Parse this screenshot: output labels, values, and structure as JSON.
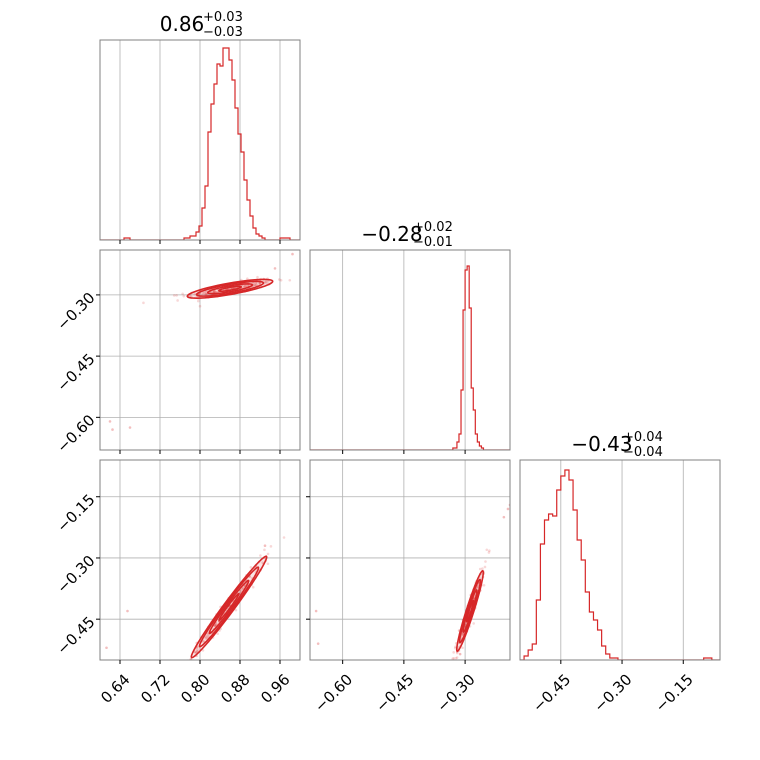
{
  "chart_data": {
    "type": "corner",
    "color": "#d62728",
    "grid": true,
    "params": [
      {
        "name": "",
        "range": [
          0.6,
          1.0
        ],
        "ticks": [
          0.64,
          0.72,
          0.8,
          0.88,
          0.96
        ],
        "tick_labels": [
          "0.64",
          "0.72",
          "0.80",
          "0.88",
          "0.96"
        ],
        "title_value": "0.86",
        "title_plus": "+0.03",
        "title_minus": "−0.03",
        "hist_x": [
          0.6,
          0.612,
          0.624,
          0.636,
          0.648,
          0.66,
          0.672,
          0.684,
          0.696,
          0.708,
          0.72,
          0.732,
          0.744,
          0.756,
          0.768,
          0.78,
          0.792,
          0.798,
          0.804,
          0.81,
          0.816,
          0.822,
          0.828,
          0.834,
          0.84,
          0.846,
          0.852,
          0.858,
          0.864,
          0.87,
          0.876,
          0.882,
          0.888,
          0.894,
          0.9,
          0.906,
          0.912,
          0.918,
          0.924,
          0.93,
          0.94,
          0.96,
          0.98
        ],
        "hist_y": [
          0.0,
          0.0,
          0.0,
          0.0,
          0.01,
          0.0,
          0.0,
          0.0,
          0.0,
          0.0,
          0.0,
          0.0,
          0.0,
          0.0,
          0.01,
          0.02,
          0.04,
          0.07,
          0.16,
          0.27,
          0.54,
          0.68,
          0.78,
          0.88,
          0.87,
          0.96,
          0.96,
          0.9,
          0.8,
          0.66,
          0.53,
          0.44,
          0.3,
          0.2,
          0.12,
          0.06,
          0.03,
          0.02,
          0.01,
          0.0,
          0.0,
          0.01,
          0.0
        ]
      },
      {
        "name": "",
        "range": [
          -0.68,
          -0.19
        ],
        "ticks": [
          -0.6,
          -0.45,
          -0.3
        ],
        "tick_labels": [
          "−0.60",
          "−0.45",
          "−0.30"
        ],
        "title_value": "−0.28",
        "title_plus": "+0.02",
        "title_minus": "−0.01",
        "hist_x": [
          -0.68,
          -0.66,
          -0.64,
          -0.62,
          -0.6,
          -0.58,
          -0.56,
          -0.54,
          -0.52,
          -0.5,
          -0.48,
          -0.46,
          -0.44,
          -0.42,
          -0.4,
          -0.38,
          -0.36,
          -0.34,
          -0.33,
          -0.32,
          -0.315,
          -0.31,
          -0.305,
          -0.3,
          -0.295,
          -0.29,
          -0.285,
          -0.28,
          -0.275,
          -0.27,
          -0.265,
          -0.26,
          -0.255,
          -0.25,
          -0.24,
          -0.22,
          -0.2
        ],
        "hist_y": [
          0.0,
          0.0,
          0.0,
          0.0,
          0.0,
          0.0,
          0.0,
          0.0,
          0.0,
          0.0,
          0.0,
          0.0,
          0.0,
          0.0,
          0.0,
          0.0,
          0.0,
          0.0,
          0.01,
          0.04,
          0.08,
          0.3,
          0.7,
          0.9,
          0.92,
          0.71,
          0.31,
          0.2,
          0.08,
          0.04,
          0.02,
          0.01,
          0.0,
          0.0,
          0.0,
          0.0,
          0.0
        ]
      },
      {
        "name": "",
        "range": [
          -0.55,
          -0.06
        ],
        "ticks": [
          -0.45,
          -0.3,
          -0.15
        ],
        "tick_labels": [
          "−0.45",
          "−0.30",
          "−0.15"
        ],
        "title_value": "−0.43",
        "title_plus": "+0.04",
        "title_minus": "−0.04",
        "hist_x": [
          -0.55,
          -0.54,
          -0.53,
          -0.52,
          -0.51,
          -0.5,
          -0.49,
          -0.48,
          -0.47,
          -0.46,
          -0.45,
          -0.44,
          -0.43,
          -0.42,
          -0.41,
          -0.4,
          -0.39,
          -0.38,
          -0.37,
          -0.36,
          -0.35,
          -0.34,
          -0.33,
          -0.32,
          -0.31,
          -0.3,
          -0.29,
          -0.28,
          -0.26,
          -0.24,
          -0.22,
          -0.2,
          -0.18,
          -0.16,
          -0.14,
          -0.12,
          -0.1,
          -0.08
        ],
        "hist_y": [
          0.0,
          0.02,
          0.05,
          0.08,
          0.3,
          0.58,
          0.7,
          0.73,
          0.72,
          0.85,
          0.92,
          0.95,
          0.9,
          0.75,
          0.6,
          0.5,
          0.34,
          0.24,
          0.2,
          0.15,
          0.07,
          0.03,
          0.01,
          0.01,
          0.0,
          0.0,
          0.0,
          0.0,
          0.0,
          0.0,
          0.0,
          0.0,
          0.0,
          0.0,
          0.0,
          0.0,
          0.01,
          0.0
        ]
      }
    ],
    "pairs": [
      {
        "row": 1,
        "col": 0,
        "center": [
          0.86,
          -0.285
        ],
        "axis_dirs": [
          [
            0.977,
            0.213
          ],
          [
            -0.213,
            0.977
          ]
        ],
        "sigma": [
          0.038,
          0.006
        ],
        "levels": [
          0.6,
          1.2,
          1.8,
          2.3
        ],
        "outliers": [
          [
            0.625,
            -0.63
          ],
          [
            0.66,
            -0.625
          ],
          [
            0.985,
            -0.2
          ],
          [
            0.62,
            -0.61
          ],
          [
            0.95,
            -0.235
          ]
        ]
      },
      {
        "row": 2,
        "col": 0,
        "center": [
          0.858,
          -0.42
        ],
        "axis_dirs": [
          [
            0.516,
            0.857
          ],
          [
            -0.857,
            0.516
          ]
        ],
        "sigma": [
          0.063,
          0.005
        ],
        "levels": [
          0.6,
          1.2,
          1.8,
          2.3
        ],
        "outliers": [
          [
            0.613,
            -0.52
          ],
          [
            0.655,
            -0.43
          ],
          [
            0.93,
            -0.27
          ],
          [
            0.79,
            -0.53
          ]
        ]
      },
      {
        "row": 2,
        "col": 1,
        "center": [
          -0.288,
          -0.43
        ],
        "axis_dirs": [
          [
            0.302,
            0.953
          ],
          [
            -0.953,
            0.302
          ]
        ],
        "sigma": [
          0.045,
          0.004
        ],
        "levels": [
          0.6,
          1.2,
          1.8,
          2.3
        ],
        "outliers": [
          [
            -0.665,
            -0.43
          ],
          [
            -0.66,
            -0.51
          ],
          [
            -0.195,
            -0.18
          ],
          [
            -0.205,
            -0.2
          ],
          [
            -0.19,
            -0.17
          ]
        ]
      }
    ]
  }
}
